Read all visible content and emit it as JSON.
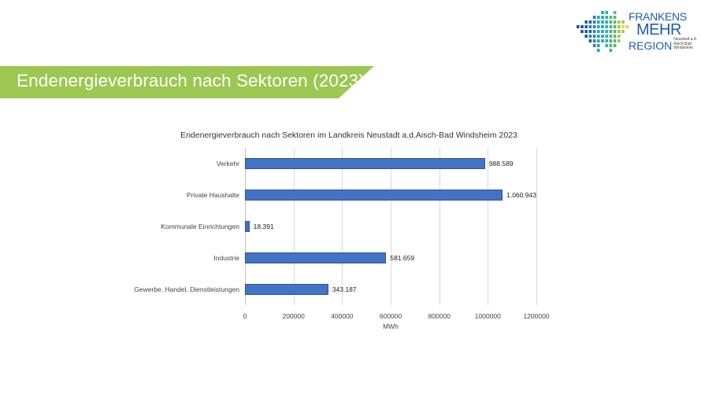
{
  "logo": {
    "line1": "FRANKENS",
    "line2": "MEHR",
    "line3": "REGION",
    "subtitle": "Neustadt a.d. Aisch-Bad Windsheim"
  },
  "banner": {
    "title": "Endenergieverbrauch nach Sektoren (2023)",
    "color": "#9bc752"
  },
  "chart_data": {
    "type": "bar",
    "orientation": "horizontal",
    "title": "Endenergieverbrauch nach Sektoren im Landkreis Neustadt a.d.Aisch-Bad Windsheim 2023",
    "categories": [
      "Verkehr",
      "Private Haushalte",
      "Kommunale Einrichtungen",
      "Industrie",
      "Gewerbe, Handel, Dienstleistungen"
    ],
    "values": [
      988589,
      1060943,
      18391,
      581659,
      343187
    ],
    "value_labels": [
      "988.589",
      "1.060.943",
      "18.391",
      "581.659",
      "343.187"
    ],
    "xlabel": "MWh",
    "ylabel": "",
    "xlim": [
      0,
      1200000
    ],
    "x_ticks": [
      "0",
      "200000",
      "400000",
      "600000",
      "800000",
      "1000000",
      "1200000"
    ],
    "grid": true,
    "legend": null,
    "bar_color": "#4472c4"
  }
}
